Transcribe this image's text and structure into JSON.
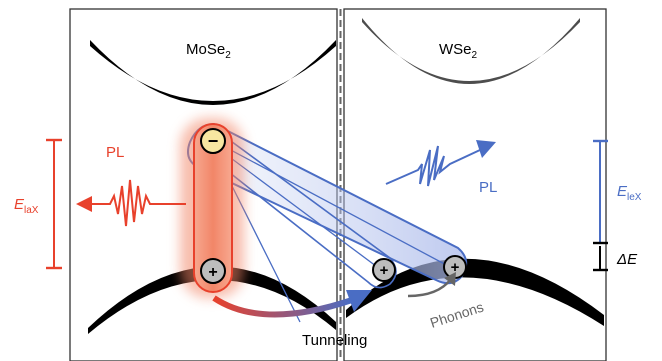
{
  "labels": {
    "left_material": "MoSe",
    "left_material_sub": "2",
    "right_material": "WSe",
    "right_material_sub": "2",
    "pl_left": "PL",
    "pl_right": "PL",
    "e_intra": "E",
    "e_intra_sub": "laX",
    "e_inter": "E",
    "e_inter_sub": "leX",
    "delta_e": "ΔE",
    "tunneling": "Tunneling",
    "phonons": "Phonons",
    "electron_sign": "−",
    "hole_sign": "+"
  },
  "colors": {
    "intralayer": "#e8412c",
    "interlayer": "#4a6dc4",
    "band": "#000000",
    "upper_band_right": "#4d4d4d",
    "frame": "#333333",
    "electron_fill": "#f7e7a1",
    "hole_fill": "#bdbdbd",
    "phonon_arrow": "#666666"
  }
}
